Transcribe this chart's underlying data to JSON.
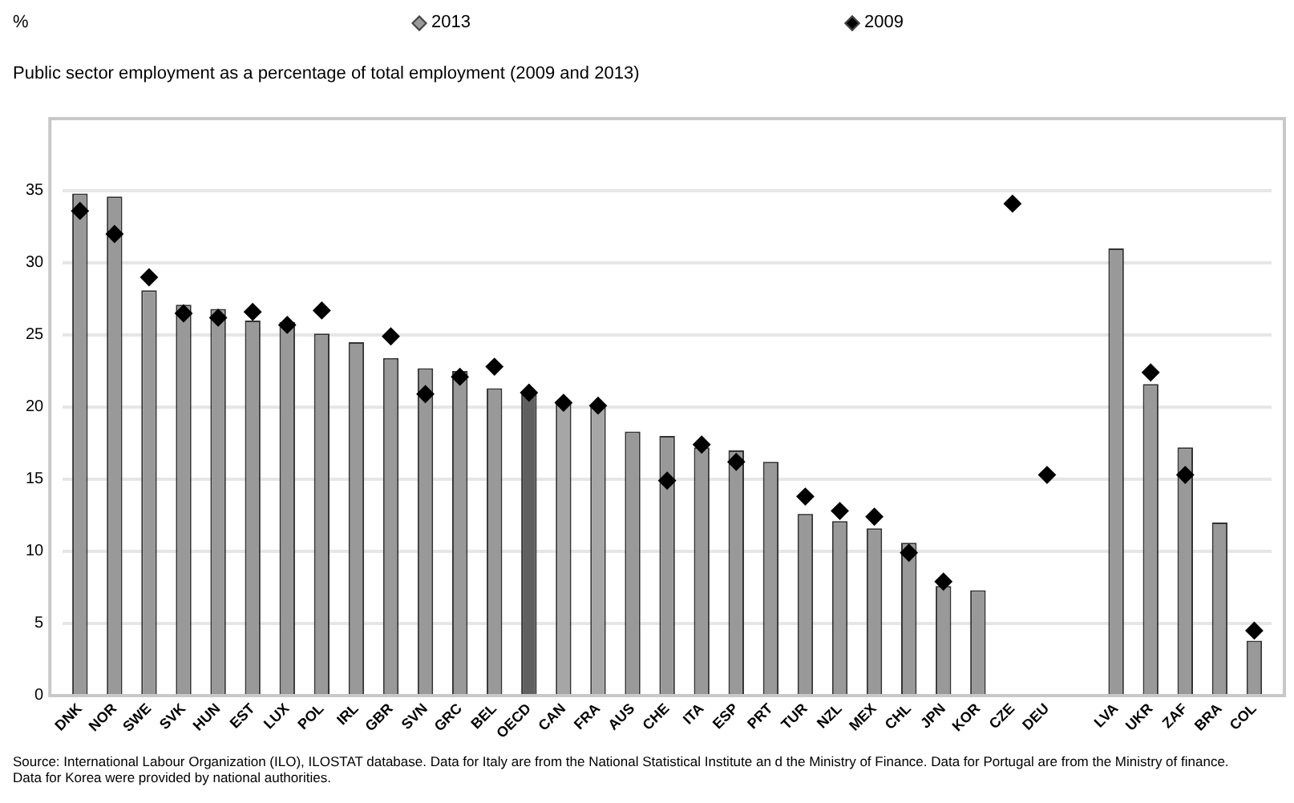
{
  "chart_data": {
    "type": "bar",
    "title": "Public sector employment as a percentage of total employment (2009 and 2013)",
    "ylabel": "%",
    "categories": [
      "DNK",
      "NOR",
      "SWE",
      "SVK",
      "HUN",
      "EST",
      "LUX",
      "POL",
      "IRL",
      "GBR",
      "SVN",
      "GRC",
      "BEL",
      "OECD",
      "CAN",
      "FRA",
      "AUS",
      "CHE",
      "ITA",
      "ESP",
      "PRT",
      "TUR",
      "NZL",
      "MEX",
      "CHL",
      "JPN",
      "KOR",
      "CZE",
      "DEU",
      null,
      "LVA",
      "UKR",
      "ZAF",
      "BRA",
      "COL"
    ],
    "series": [
      {
        "name": "2013",
        "color": "#999999",
        "colors": [
          "#999999",
          "#999999",
          "#999999",
          "#999999",
          "#999999",
          "#999999",
          "#999999",
          "#999999",
          "#999999",
          "#999999",
          "#999999",
          "#999999",
          "#999999",
          "#606060",
          "#a6a6a6",
          "#a6a6a6",
          "#999999",
          "#999999",
          "#999999",
          "#999999",
          "#999999",
          "#999999",
          "#999999",
          "#999999",
          "#999999",
          "#999999",
          "#999999",
          "#999999",
          "#999999",
          "#999999",
          "#999999",
          "#999999",
          "#999999",
          "#999999",
          "#999999"
        ],
        "values": [
          34.8,
          34.6,
          28.1,
          27.1,
          26.8,
          26.0,
          25.9,
          25.1,
          24.5,
          23.4,
          22.7,
          22.5,
          21.3,
          21.0,
          20.3,
          20.0,
          18.3,
          18.0,
          17.2,
          17.0,
          16.2,
          12.6,
          12.1,
          11.6,
          10.6,
          7.6,
          7.3,
          null,
          null,
          null,
          31.0,
          21.6,
          17.2,
          12.0,
          3.8
        ]
      },
      {
        "name": "2009",
        "type": "scatter",
        "color": "#000000",
        "marker": "diamond",
        "values": [
          33.6,
          32.0,
          29.0,
          26.5,
          26.2,
          26.6,
          25.7,
          26.7,
          null,
          24.9,
          20.9,
          22.1,
          22.8,
          21.0,
          20.3,
          20.1,
          null,
          14.9,
          17.4,
          16.2,
          null,
          13.8,
          12.8,
          12.4,
          9.9,
          7.9,
          null,
          34.1,
          15.3,
          null,
          null,
          22.4,
          15.3,
          null,
          4.5
        ]
      }
    ],
    "ylim": [
      0,
      40
    ],
    "yticks": [
      0,
      5,
      10,
      15,
      20,
      25,
      30,
      35
    ],
    "grid": "y",
    "legend": "top",
    "annotations": [
      "Source: International Labour Organization (ILO), ILOSTAT database. Data for Italy are from the National Statistical Institute an d the Ministry of Finance. Data for Portugal are from the Ministry of finance. Data for Korea were provided by national authorities."
    ]
  }
}
